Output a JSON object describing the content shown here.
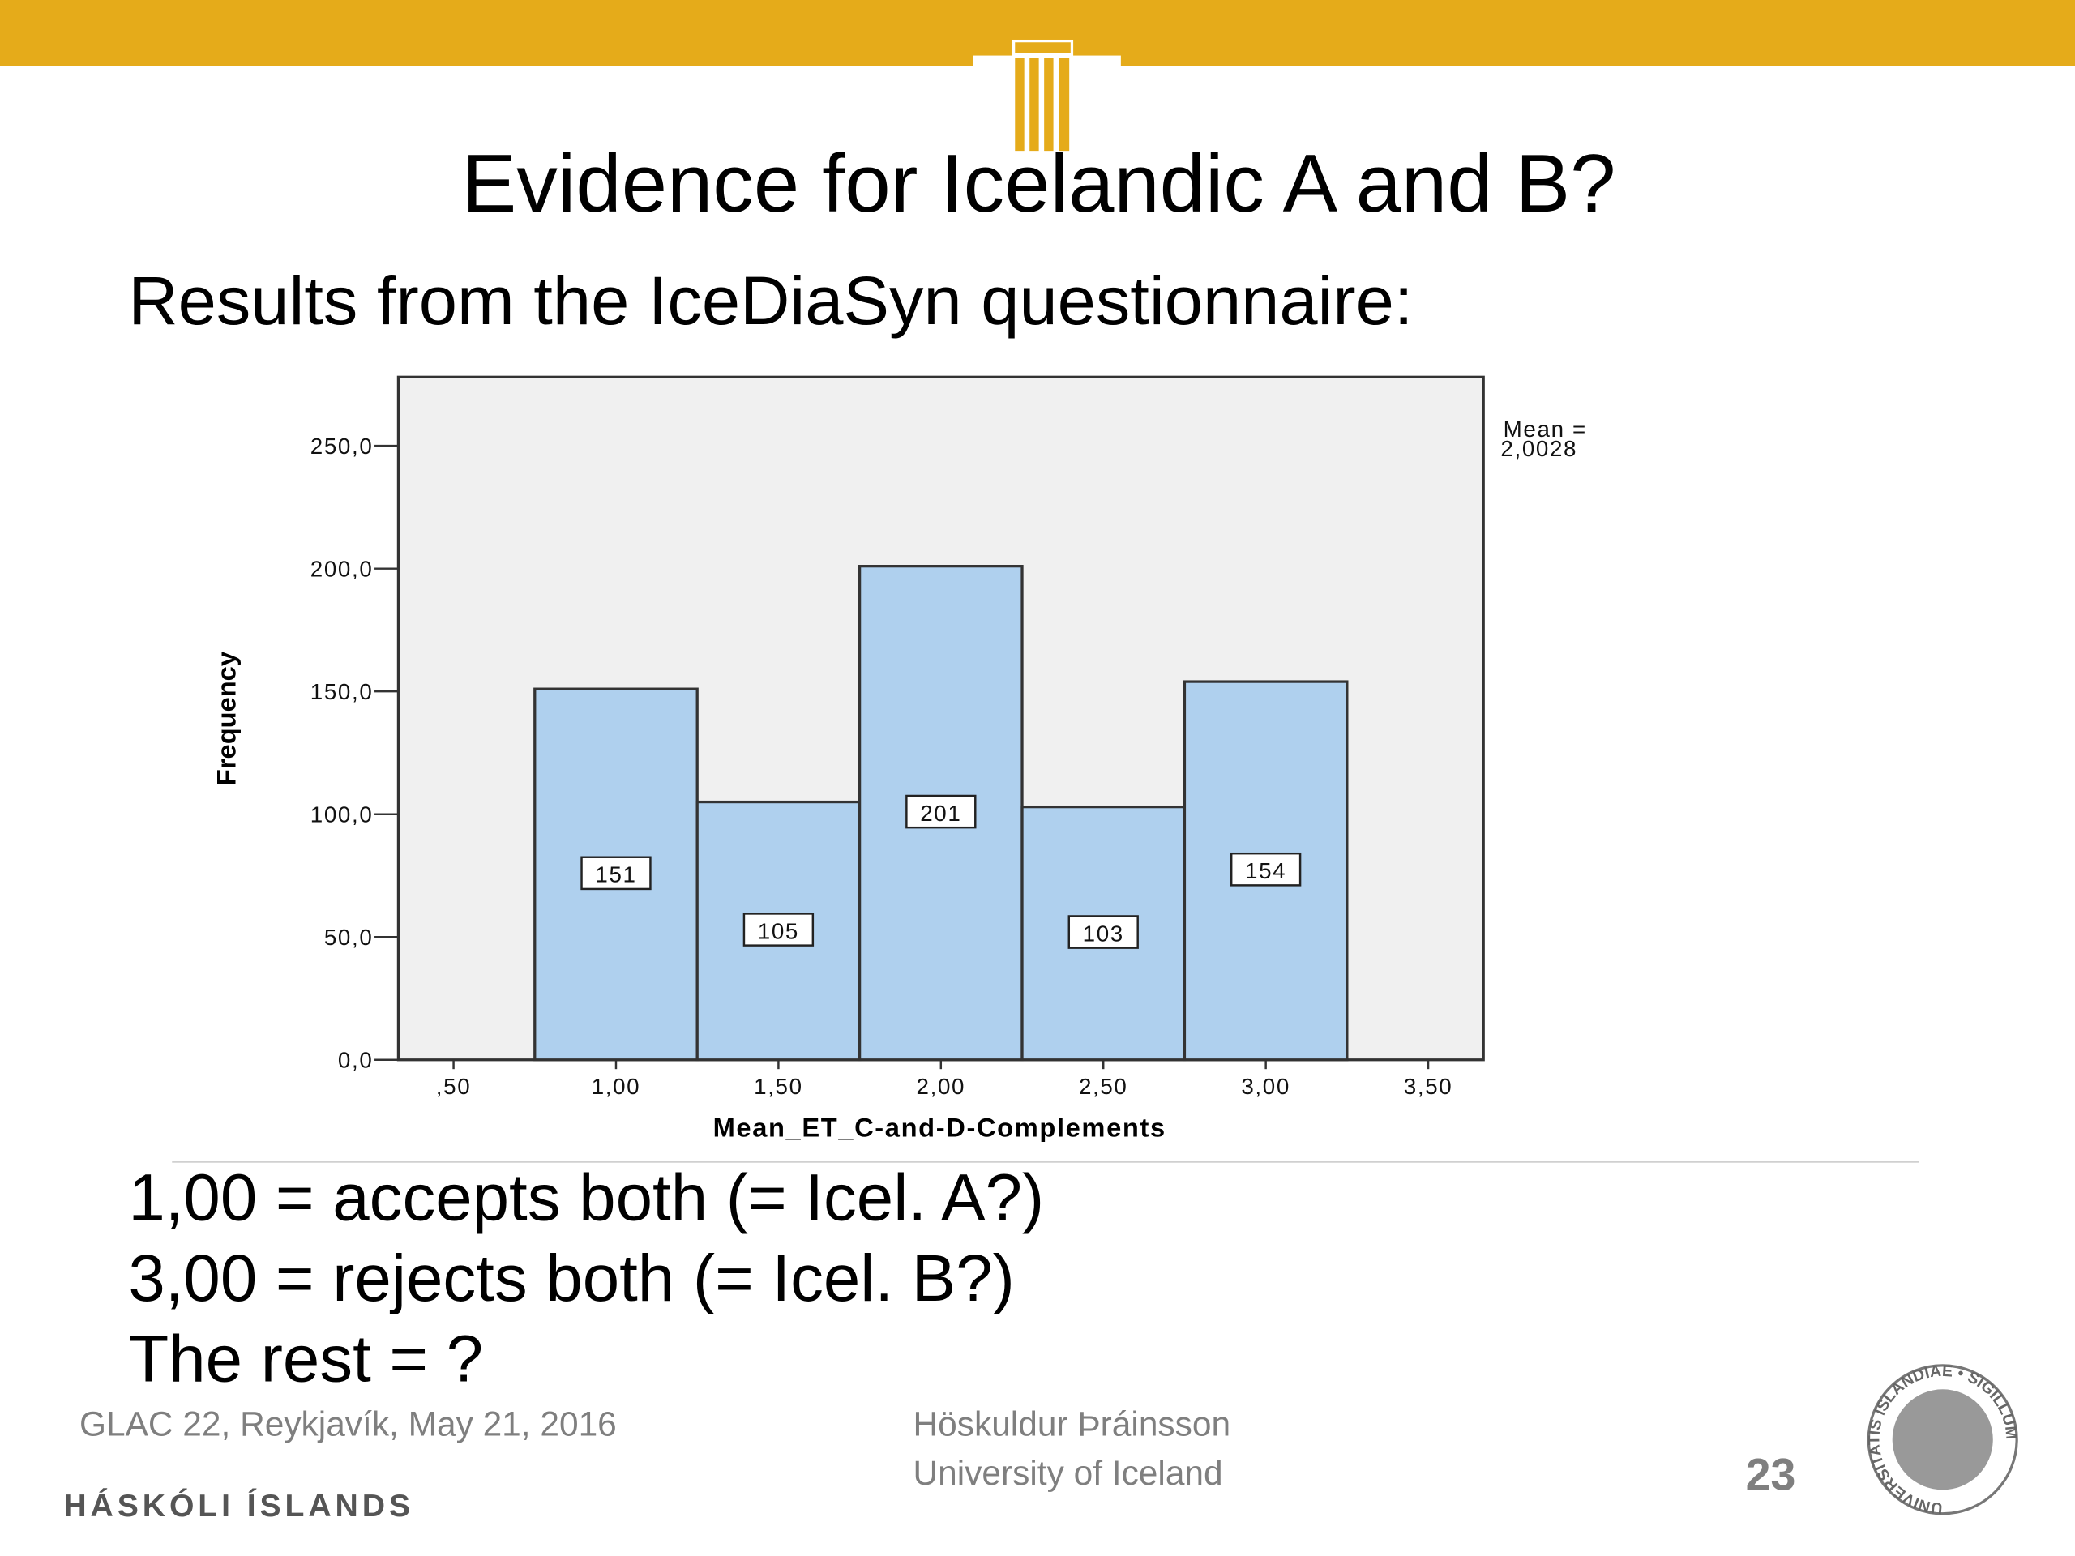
{
  "slide": {
    "title": "Evidence for Icelandic A and B?",
    "subtitle": "Results from the IceDiaSyn questionnaire:",
    "notes": [
      "1,00 = accepts both (= Icel. A?)",
      "3,00 = rejects both (= Icel. B?)",
      "The rest = ?"
    ],
    "footer_event": "GLAC 22, Reykjavík, May 21, 2016",
    "footer_author": "Höskuldur Þráinsson",
    "footer_affiliation": "University of Iceland",
    "page_number": "23",
    "university": "HÁSKÓLI ÍSLANDS",
    "seal_text": "UNIVERSITATIS ISLANDIAE • SIGILLUM"
  },
  "chart_data": {
    "type": "histogram",
    "x_label": "Mean_ET_C-and-D-Complements",
    "y_label": "Frequency",
    "annotation": [
      "Mean =",
      "2,0028"
    ],
    "bins": [
      0.75,
      1.25,
      1.75,
      2.25,
      2.75,
      3.25
    ],
    "values": [
      151,
      105,
      201,
      103,
      154
    ],
    "color": "#afd0ee",
    "xlim": [
      0.33,
      3.67
    ],
    "ylim": [
      0,
      278
    ],
    "xticks": [
      {
        "value": 0.5,
        "label": ",50"
      },
      {
        "value": 1,
        "label": "1,00"
      },
      {
        "value": 1.5,
        "label": "1,50"
      },
      {
        "value": 2,
        "label": "2,00"
      },
      {
        "value": 2.5,
        "label": "2,50"
      },
      {
        "value": 3,
        "label": "3,00"
      },
      {
        "value": 3.5,
        "label": "3,50"
      }
    ],
    "yticks": [
      {
        "value": 0,
        "label": "0,0"
      },
      {
        "value": 50,
        "label": "50,0"
      },
      {
        "value": 100,
        "label": "100,0"
      },
      {
        "value": 150,
        "label": "150,0"
      },
      {
        "value": 200,
        "label": "200,0"
      },
      {
        "value": 250,
        "label": "250,0"
      }
    ]
  }
}
